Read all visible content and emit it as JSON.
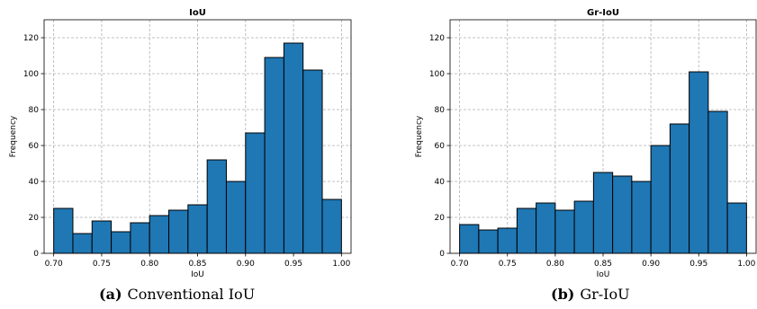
{
  "chart_data": [
    {
      "type": "bar",
      "title": "IoU",
      "xlabel": "IoU",
      "ylabel": "Frequency",
      "bin_edges": [
        0.7,
        0.72,
        0.74,
        0.76,
        0.78,
        0.8,
        0.82,
        0.84,
        0.86,
        0.88,
        0.9,
        0.92,
        0.94,
        0.96,
        0.98,
        1.0
      ],
      "values": [
        25,
        11,
        18,
        12,
        17,
        21,
        24,
        27,
        52,
        40,
        67,
        109,
        117,
        102,
        30
      ],
      "xlim": [
        0.69,
        1.01
      ],
      "ylim": [
        0,
        130
      ],
      "xticks": [
        "0.70",
        "0.75",
        "0.80",
        "0.85",
        "0.90",
        "0.95",
        "1.00"
      ],
      "yticks": [
        "0",
        "20",
        "40",
        "60",
        "80",
        "100",
        "120"
      ],
      "grid": true,
      "bar_color": "#1f77b4",
      "edge_color": "#000000",
      "caption_tag": "(a)",
      "caption_text": "Conventional IoU"
    },
    {
      "type": "bar",
      "title": "Gr-IoU",
      "xlabel": "IoU",
      "ylabel": "Frequency",
      "bin_edges": [
        0.7,
        0.72,
        0.74,
        0.76,
        0.78,
        0.8,
        0.82,
        0.84,
        0.86,
        0.88,
        0.9,
        0.92,
        0.94,
        0.96,
        0.98,
        1.0
      ],
      "values": [
        16,
        13,
        14,
        25,
        28,
        24,
        29,
        45,
        43,
        40,
        60,
        72,
        101,
        79,
        28
      ],
      "xlim": [
        0.69,
        1.01
      ],
      "ylim": [
        0,
        130
      ],
      "xticks": [
        "0.70",
        "0.75",
        "0.80",
        "0.85",
        "0.90",
        "0.95",
        "1.00"
      ],
      "yticks": [
        "0",
        "20",
        "40",
        "60",
        "80",
        "100",
        "120"
      ],
      "grid": true,
      "bar_color": "#1f77b4",
      "edge_color": "#000000",
      "caption_tag": "(b)",
      "caption_text": "Gr-IoU"
    }
  ]
}
